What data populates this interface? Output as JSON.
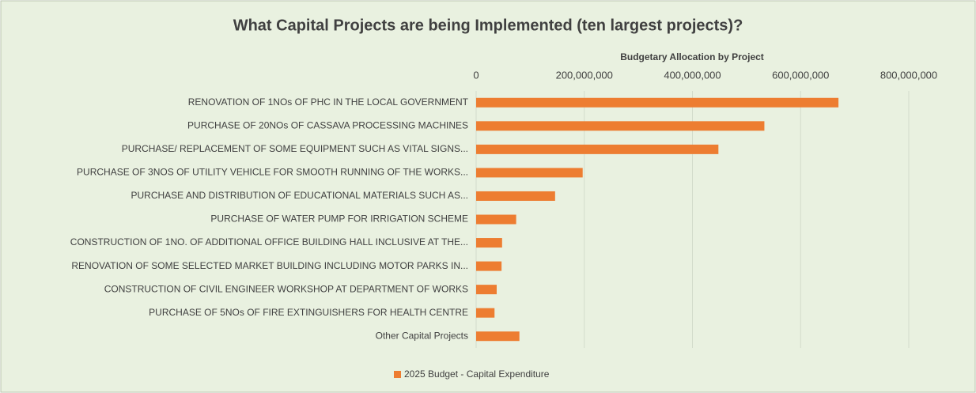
{
  "chart_data": {
    "type": "bar",
    "orientation": "horizontal",
    "title": "What Capital Projects are being Implemented (ten largest projects)?",
    "x_label": "Budgetary Allocation by Project",
    "categories": [
      "RENOVATION OF 1NOs OF PHC IN THE LOCAL GOVERNMENT",
      "PURCHASE OF 20NOs OF CASSAVA PROCESSING MACHINES",
      "PURCHASE/ REPLACEMENT OF SOME EQUIPMENT SUCH AS VITAL SIGNS...",
      "PURCHASE OF 3NOS OF UTILITY VEHICLE FOR SMOOTH RUNNING OF THE WORKS...",
      "PURCHASE AND DISTRIBUTION OF EDUCATIONAL MATERIALS SUCH AS...",
      "PURCHASE OF WATER PUMP FOR IRRIGATION SCHEME",
      "CONSTRUCTION OF 1NO.  OF ADDITIONAL OFFICE BUILDING HALL INCLUSIVE AT THE...",
      "RENOVATION OF SOME SELECTED MARKET BUILDING INCLUDING MOTOR PARKS IN...",
      "CONSTRUCTION OF CIVIL ENGINEER WORKSHOP AT DEPARTMENT OF WORKS",
      "PURCHASE OF 5NOs OF FIRE EXTINGUISHERS FOR HEALTH CENTRE",
      "Other Capital Projects"
    ],
    "series": [
      {
        "name": "2025 Budget - Capital Expenditure",
        "color": "#ed7d31",
        "values": [
          670000000,
          533000000,
          448000000,
          197000000,
          146000000,
          74000000,
          48000000,
          47000000,
          38000000,
          34000000,
          80000000
        ]
      }
    ],
    "xlim": [
      0,
      800000000
    ],
    "xticks": [
      0,
      {
        "value": 200000000,
        "label": "200,000,000"
      },
      {
        "value": 400000000,
        "label": "400,000,000"
      },
      {
        "value": 600000000,
        "label": "600,000,000"
      },
      {
        "value": 800000000,
        "label": "800,000,000"
      }
    ],
    "grid": true,
    "legend": "bottom"
  }
}
